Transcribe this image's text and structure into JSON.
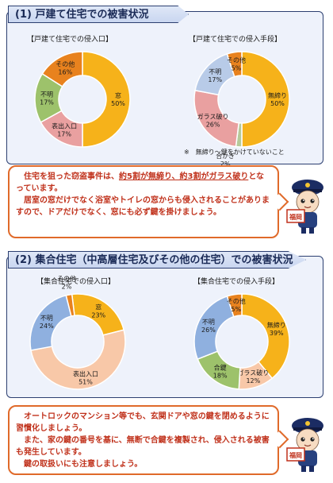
{
  "section1": {
    "heading": "(1) 戸建て住宅での被害状況",
    "note": "※　無締り～鍵をかけていないこと",
    "callout": {
      "line1a": "住宅を狙った窃盗事件は、",
      "line1u": "約5割が無締り、約3割がガラス破り",
      "line1b": "となっています。",
      "line2": "居室の窓だけでなく浴室やトイレの窓からも侵入されることがありますので、ドアだけでなく、窓にも必ず鍵を掛けましょう。"
    }
  },
  "section2": {
    "heading": "(2) 集合住宅（中高層住宅及びその他の住宅）での被害状況",
    "callout": {
      "line1": "オートロックのマンション等でも、玄関ドアや窓の鍵を閉めるように習慣化しましょう。",
      "line2": "また、家の鍵の番号を基に、無断で合鍵を複製され、侵入される被害も発生しています。",
      "line3": "鍵の取扱いにも注意しましょう。"
    }
  },
  "mascot_badge": "福岡",
  "chart_data": [
    {
      "type": "pie",
      "title": "【戸建て住宅での侵入口】",
      "categories": [
        "窓",
        "表出入口",
        "不明",
        "その他"
      ],
      "values": [
        50,
        17,
        17,
        16
      ],
      "colors": [
        "#f6b21a",
        "#e9a0a0",
        "#9dc26b",
        "#e8821e"
      ]
    },
    {
      "type": "pie",
      "title": "【戸建て住宅での侵入手段】",
      "categories": [
        "無締り",
        "合かぎ",
        "ガラス破り",
        "不明",
        "その他"
      ],
      "values": [
        50,
        2,
        26,
        17,
        5
      ],
      "colors": [
        "#f6b21a",
        "#b6c99a",
        "#e9a0a0",
        "#b8cbe8",
        "#e8821e"
      ]
    },
    {
      "type": "pie",
      "title": "【集合住宅での侵入口】",
      "categories": [
        "窓",
        "表出入口",
        "不明",
        "その他"
      ],
      "values": [
        23,
        51,
        24,
        2
      ],
      "colors": [
        "#f6b21a",
        "#f8c8a8",
        "#8fb0df",
        "#e8821e"
      ]
    },
    {
      "type": "pie",
      "title": "【集合住宅での侵入手段】",
      "categories": [
        "無締り",
        "ガラス破り",
        "合鍵",
        "不明",
        "その他"
      ],
      "values": [
        39,
        12,
        18,
        26,
        5
      ],
      "colors": [
        "#f6b21a",
        "#f8c8a8",
        "#9dc26b",
        "#8fb0df",
        "#e8821e"
      ]
    }
  ]
}
